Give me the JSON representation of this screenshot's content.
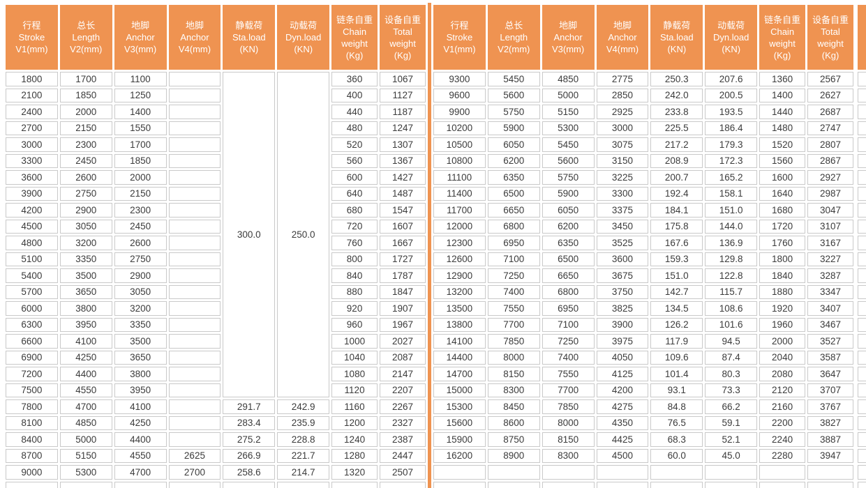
{
  "colors": {
    "header_bg": "#EF9351",
    "divider": "#EF9351",
    "grid_border": "#C9C9C9",
    "cell_text": "#3B3B3B",
    "header_text": "#FFFFFF"
  },
  "table": {
    "column_headers": [
      {
        "lines": [
          "行程",
          "Stroke",
          "V1(mm)"
        ]
      },
      {
        "lines": [
          "总长",
          "Length",
          "V2(mm)"
        ]
      },
      {
        "lines": [
          "地脚",
          "Anchor",
          "V3(mm)"
        ]
      },
      {
        "lines": [
          "地脚",
          "Anchor",
          "V4(mm)"
        ]
      },
      {
        "lines": [
          "静载荷",
          "Sta.load",
          "(KN)"
        ]
      },
      {
        "lines": [
          "动载荷",
          "Dyn.load",
          "(KN)"
        ]
      },
      {
        "lines": [
          "链条自重",
          "Chain",
          "weight",
          "(Kg)"
        ]
      },
      {
        "lines": [
          "设备自重",
          "Total",
          "weight",
          "(Kg)"
        ]
      }
    ],
    "row_count": 25,
    "left": {
      "v1": [
        "1800",
        "2100",
        "2400",
        "2700",
        "3000",
        "3300",
        "3600",
        "3900",
        "4200",
        "4500",
        "4800",
        "5100",
        "5400",
        "5700",
        "6000",
        "6300",
        "6600",
        "6900",
        "7200",
        "7500",
        "7800",
        "8100",
        "8400",
        "8700",
        "9000"
      ],
      "v2": [
        "1700",
        "1850",
        "2000",
        "2150",
        "2300",
        "2450",
        "2600",
        "2750",
        "2900",
        "3050",
        "3200",
        "3350",
        "3500",
        "3650",
        "3800",
        "3950",
        "4100",
        "4250",
        "4400",
        "4550",
        "4700",
        "4850",
        "5000",
        "5150",
        "5300"
      ],
      "v3": [
        "1100",
        "1250",
        "1400",
        "1550",
        "1700",
        "1850",
        "2000",
        "2150",
        "2300",
        "2450",
        "2600",
        "2750",
        "2900",
        "3050",
        "3200",
        "3350",
        "3500",
        "3650",
        "3800",
        "3950",
        "4100",
        "4250",
        "4400",
        "4550",
        "4700"
      ],
      "v4": [
        "",
        "",
        "",
        "",
        "",
        "",
        "",
        "",
        "",
        "",
        "",
        "",
        "",
        "",
        "",
        "",
        "",
        "",
        "",
        "",
        "",
        "",
        "",
        "2625",
        "2700"
      ],
      "merged_span": 20,
      "sta_merged": "300.0",
      "dyn_merged": "250.0",
      "sta_tail": [
        "291.7",
        "283.4",
        "275.2",
        "266.9",
        "258.6"
      ],
      "dyn_tail": [
        "242.9",
        "235.9",
        "228.8",
        "221.7",
        "214.7"
      ],
      "chain": [
        "360",
        "400",
        "440",
        "480",
        "520",
        "560",
        "600",
        "640",
        "680",
        "720",
        "760",
        "800",
        "840",
        "880",
        "920",
        "960",
        "1000",
        "1040",
        "1080",
        "1120",
        "1160",
        "1200",
        "1240",
        "1280",
        "1320"
      ],
      "total": [
        "1067",
        "1127",
        "1187",
        "1247",
        "1307",
        "1367",
        "1427",
        "1487",
        "1547",
        "1607",
        "1667",
        "1727",
        "1787",
        "1847",
        "1907",
        "1967",
        "2027",
        "2087",
        "2147",
        "2207",
        "2267",
        "2327",
        "2387",
        "2447",
        "2507"
      ]
    },
    "right": {
      "v1": [
        "9300",
        "9600",
        "9900",
        "10200",
        "10500",
        "10800",
        "11100",
        "11400",
        "11700",
        "12000",
        "12300",
        "12600",
        "12900",
        "13200",
        "13500",
        "13800",
        "14100",
        "14400",
        "14700",
        "15000",
        "15300",
        "15600",
        "15900",
        "16200",
        ""
      ],
      "v2": [
        "5450",
        "5600",
        "5750",
        "5900",
        "6050",
        "6200",
        "6350",
        "6500",
        "6650",
        "6800",
        "6950",
        "7100",
        "7250",
        "7400",
        "7550",
        "7700",
        "7850",
        "8000",
        "8150",
        "8300",
        "8450",
        "8600",
        "8750",
        "8900",
        ""
      ],
      "v3": [
        "4850",
        "5000",
        "5150",
        "5300",
        "5450",
        "5600",
        "5750",
        "5900",
        "6050",
        "6200",
        "6350",
        "6500",
        "6650",
        "6800",
        "6950",
        "7100",
        "7250",
        "7400",
        "7550",
        "7700",
        "7850",
        "8000",
        "8150",
        "8300",
        ""
      ],
      "v4": [
        "2775",
        "2850",
        "2925",
        "3000",
        "3075",
        "3150",
        "3225",
        "3300",
        "3375",
        "3450",
        "3525",
        "3600",
        "3675",
        "3750",
        "3825",
        "3900",
        "3975",
        "4050",
        "4125",
        "4200",
        "4275",
        "4350",
        "4425",
        "4500",
        ""
      ],
      "sta": [
        "250.3",
        "242.0",
        "233.8",
        "225.5",
        "217.2",
        "208.9",
        "200.7",
        "192.4",
        "184.1",
        "175.8",
        "167.6",
        "159.3",
        "151.0",
        "142.7",
        "134.5",
        "126.2",
        "117.9",
        "109.6",
        "101.4",
        "93.1",
        "84.8",
        "76.5",
        "68.3",
        "60.0",
        ""
      ],
      "dyn": [
        "207.6",
        "200.5",
        "193.5",
        "186.4",
        "179.3",
        "172.3",
        "165.2",
        "158.1",
        "151.0",
        "144.0",
        "136.9",
        "129.8",
        "122.8",
        "115.7",
        "108.6",
        "101.6",
        "94.5",
        "87.4",
        "80.3",
        "73.3",
        "66.2",
        "59.1",
        "52.1",
        "45.0",
        ""
      ],
      "chain": [
        "1360",
        "1400",
        "1440",
        "1480",
        "1520",
        "1560",
        "1600",
        "1640",
        "1680",
        "1720",
        "1760",
        "1800",
        "1840",
        "1880",
        "1920",
        "1960",
        "2000",
        "2040",
        "2080",
        "2120",
        "2160",
        "2200",
        "2240",
        "2280",
        ""
      ],
      "total": [
        "2567",
        "2627",
        "2687",
        "2747",
        "2807",
        "2867",
        "2927",
        "2987",
        "3047",
        "3107",
        "3167",
        "3227",
        "3287",
        "3347",
        "3407",
        "3467",
        "3527",
        "3587",
        "3647",
        "3707",
        "3767",
        "3827",
        "3887",
        "3947",
        ""
      ]
    }
  }
}
